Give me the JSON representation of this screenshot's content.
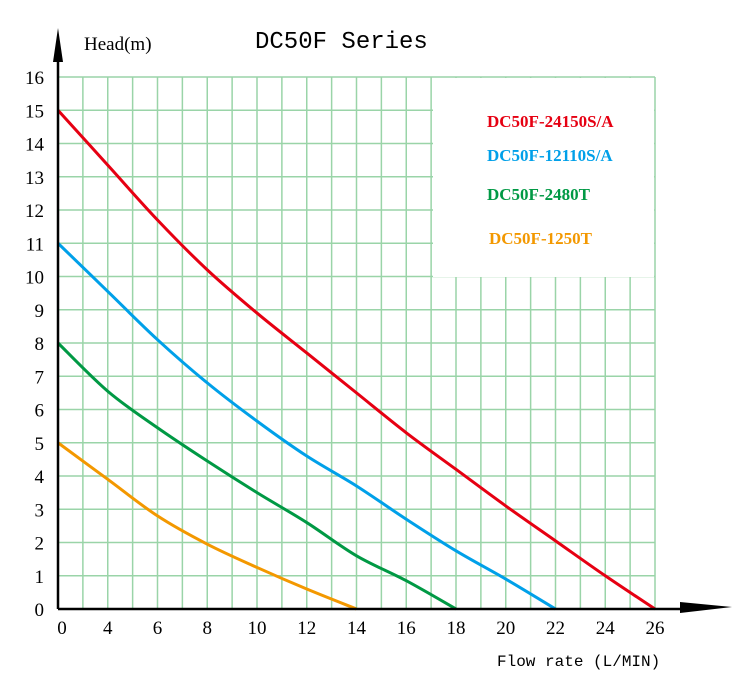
{
  "chart_data": {
    "type": "line",
    "title": "DC50F Series",
    "xlabel": "Flow rate (L/MIN)",
    "ylabel": "Head(m)",
    "x_tick_labels": [
      "0",
      "4",
      "6",
      "8",
      "10",
      "12",
      "14",
      "16",
      "18",
      "20",
      "22",
      "24",
      "26"
    ],
    "y_tick_labels": [
      "0",
      "1",
      "2",
      "3",
      "4",
      "5",
      "6",
      "7",
      "8",
      "9",
      "10",
      "11",
      "12",
      "13",
      "14",
      "15",
      "16"
    ],
    "ylim": [
      0,
      16
    ],
    "grid": true,
    "legend_position": "top-right",
    "x": [
      0,
      4,
      6,
      8,
      10,
      12,
      14,
      16,
      18,
      20,
      22,
      24,
      26
    ],
    "series": [
      {
        "name": "DC50F-24150S/A",
        "color": "#e60012",
        "values": [
          15,
          13.35,
          11.7,
          10.2,
          8.9,
          7.7,
          6.5,
          5.3,
          4.2,
          3.1,
          2.05,
          1.0,
          0
        ]
      },
      {
        "name": "DC50F-12110S/A",
        "color": "#00a0e9",
        "values": [
          11,
          9.55,
          8.1,
          6.8,
          5.65,
          4.6,
          3.7,
          2.7,
          1.75,
          0.9,
          0,
          null,
          null
        ]
      },
      {
        "name": "DC50F-2480T",
        "color": "#009944",
        "values": [
          8,
          6.55,
          5.45,
          4.45,
          3.5,
          2.6,
          1.6,
          0.85,
          0,
          null,
          null,
          null,
          null
        ]
      },
      {
        "name": "DC50F-1250T",
        "color": "#f39800",
        "values": [
          5,
          3.9,
          2.8,
          1.95,
          1.25,
          0.6,
          0,
          null,
          null,
          null,
          null,
          null,
          null
        ]
      }
    ]
  }
}
